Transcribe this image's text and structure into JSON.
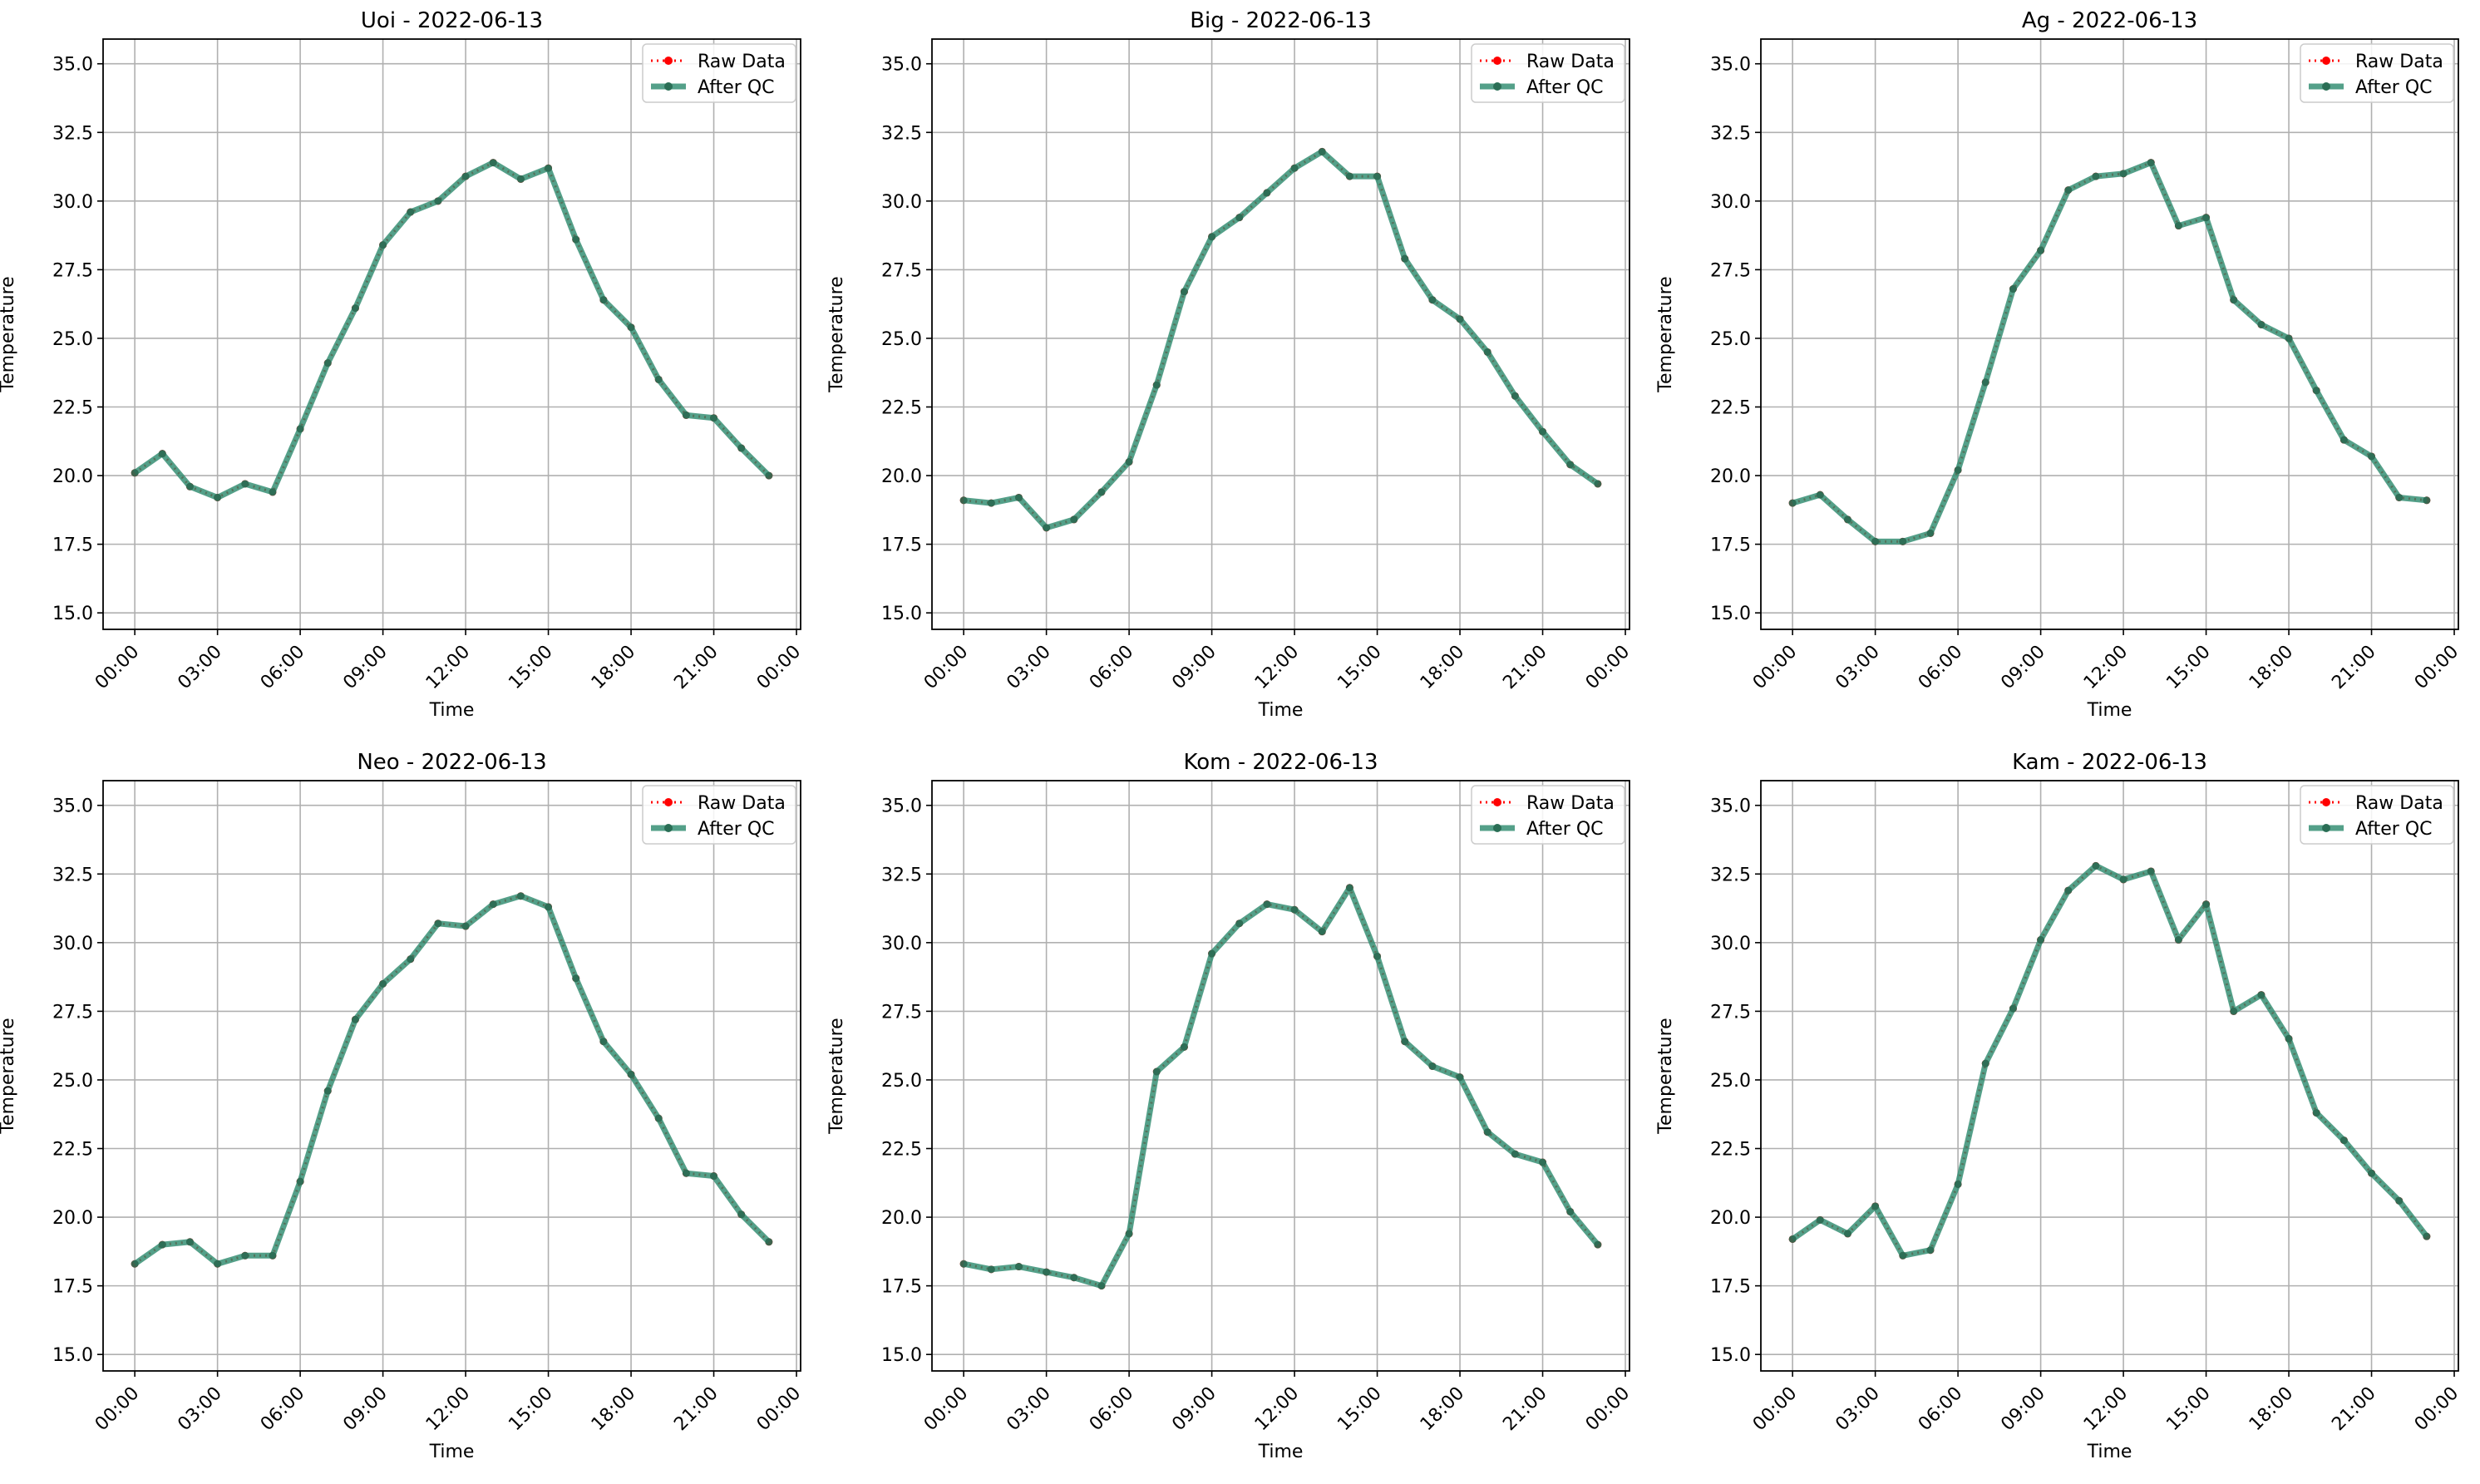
{
  "colors": {
    "raw": "#ff0000",
    "qc": "#2e8b6f",
    "qc_marker": "#2a6e55",
    "grid": "#b0b0b0",
    "axis": "#000000",
    "legend_border": "#cccccc"
  },
  "legend": {
    "raw_label": "Raw Data",
    "qc_label": "After QC",
    "position": "top-right"
  },
  "chart_data": [
    {
      "type": "line",
      "title": "Uoi - 2022-06-13",
      "xlabel": "Time",
      "ylabel": "Temperature",
      "x_hours": [
        0,
        1,
        2,
        3,
        4,
        5,
        6,
        7,
        8,
        9,
        10,
        11,
        12,
        13,
        14,
        15,
        16,
        17,
        18,
        19,
        20,
        21,
        22,
        23
      ],
      "x_tick_labels": [
        "00:00",
        "03:00",
        "06:00",
        "09:00",
        "12:00",
        "15:00",
        "18:00",
        "21:00",
        "00:00"
      ],
      "y_ticks": [
        "15.0",
        "17.5",
        "20.0",
        "22.5",
        "25.0",
        "27.5",
        "30.0",
        "32.5",
        "35.0"
      ],
      "ylim": [
        14.4,
        35.9
      ],
      "grid": true,
      "series": [
        {
          "name": "Raw Data",
          "values": [
            20.1,
            20.8,
            19.6,
            19.2,
            19.7,
            19.4,
            21.7,
            24.1,
            26.1,
            28.4,
            29.6,
            30.0,
            30.9,
            31.4,
            30.8,
            31.2,
            28.6,
            26.4,
            25.4,
            23.5,
            22.2,
            22.1,
            21.0,
            20.0
          ]
        },
        {
          "name": "After QC",
          "values": [
            20.1,
            20.8,
            19.6,
            19.2,
            19.7,
            19.4,
            21.7,
            24.1,
            26.1,
            28.4,
            29.6,
            30.0,
            30.9,
            31.4,
            30.8,
            31.2,
            28.6,
            26.4,
            25.4,
            23.5,
            22.2,
            22.1,
            21.0,
            20.0
          ]
        }
      ]
    },
    {
      "type": "line",
      "title": "Big - 2022-06-13",
      "xlabel": "Time",
      "ylabel": "Temperature",
      "x_hours": [
        0,
        1,
        2,
        3,
        4,
        5,
        6,
        7,
        8,
        9,
        10,
        11,
        12,
        13,
        14,
        15,
        16,
        17,
        18,
        19,
        20,
        21,
        22,
        23
      ],
      "x_tick_labels": [
        "00:00",
        "03:00",
        "06:00",
        "09:00",
        "12:00",
        "15:00",
        "18:00",
        "21:00",
        "00:00"
      ],
      "y_ticks": [
        "15.0",
        "17.5",
        "20.0",
        "22.5",
        "25.0",
        "27.5",
        "30.0",
        "32.5",
        "35.0"
      ],
      "ylim": [
        14.4,
        35.9
      ],
      "grid": true,
      "series": [
        {
          "name": "Raw Data",
          "values": [
            19.1,
            19.0,
            19.2,
            18.1,
            18.4,
            19.4,
            20.5,
            23.3,
            26.7,
            28.7,
            29.4,
            30.3,
            31.2,
            31.8,
            30.9,
            30.9,
            27.9,
            26.4,
            25.7,
            24.5,
            22.9,
            21.6,
            20.4,
            19.7
          ]
        },
        {
          "name": "After QC",
          "values": [
            19.1,
            19.0,
            19.2,
            18.1,
            18.4,
            19.4,
            20.5,
            23.3,
            26.7,
            28.7,
            29.4,
            30.3,
            31.2,
            31.8,
            30.9,
            30.9,
            27.9,
            26.4,
            25.7,
            24.5,
            22.9,
            21.6,
            20.4,
            19.7
          ]
        }
      ]
    },
    {
      "type": "line",
      "title": "Ag - 2022-06-13",
      "xlabel": "Time",
      "ylabel": "Temperature",
      "x_hours": [
        0,
        1,
        2,
        3,
        4,
        5,
        6,
        7,
        8,
        9,
        10,
        11,
        12,
        13,
        14,
        15,
        16,
        17,
        18,
        19,
        20,
        21,
        22,
        23
      ],
      "x_tick_labels": [
        "00:00",
        "03:00",
        "06:00",
        "09:00",
        "12:00",
        "15:00",
        "18:00",
        "21:00",
        "00:00"
      ],
      "y_ticks": [
        "15.0",
        "17.5",
        "20.0",
        "22.5",
        "25.0",
        "27.5",
        "30.0",
        "32.5",
        "35.0"
      ],
      "ylim": [
        14.4,
        35.9
      ],
      "grid": true,
      "series": [
        {
          "name": "Raw Data",
          "values": [
            19.0,
            19.3,
            18.4,
            17.6,
            17.6,
            17.9,
            20.2,
            23.4,
            26.8,
            28.2,
            30.4,
            30.9,
            31.0,
            31.4,
            29.1,
            29.4,
            26.4,
            25.5,
            25.0,
            23.1,
            21.3,
            20.7,
            19.2,
            19.1
          ]
        },
        {
          "name": "After QC",
          "values": [
            19.0,
            19.3,
            18.4,
            17.6,
            17.6,
            17.9,
            20.2,
            23.4,
            26.8,
            28.2,
            30.4,
            30.9,
            31.0,
            31.4,
            29.1,
            29.4,
            26.4,
            25.5,
            25.0,
            23.1,
            21.3,
            20.7,
            19.2,
            19.1
          ]
        }
      ]
    },
    {
      "type": "line",
      "title": "Neo - 2022-06-13",
      "xlabel": "Time",
      "ylabel": "Temperature",
      "x_hours": [
        0,
        1,
        2,
        3,
        4,
        5,
        6,
        7,
        8,
        9,
        10,
        11,
        12,
        13,
        14,
        15,
        16,
        17,
        18,
        19,
        20,
        21,
        22,
        23
      ],
      "x_tick_labels": [
        "00:00",
        "03:00",
        "06:00",
        "09:00",
        "12:00",
        "15:00",
        "18:00",
        "21:00",
        "00:00"
      ],
      "y_ticks": [
        "15.0",
        "17.5",
        "20.0",
        "22.5",
        "25.0",
        "27.5",
        "30.0",
        "32.5",
        "35.0"
      ],
      "ylim": [
        14.4,
        35.9
      ],
      "grid": true,
      "series": [
        {
          "name": "Raw Data",
          "values": [
            18.3,
            19.0,
            19.1,
            18.3,
            18.6,
            18.6,
            21.3,
            24.6,
            27.2,
            28.5,
            29.4,
            30.7,
            30.6,
            31.4,
            31.7,
            31.3,
            28.7,
            26.4,
            25.2,
            23.6,
            21.6,
            21.5,
            20.1,
            19.1
          ]
        },
        {
          "name": "After QC",
          "values": [
            18.3,
            19.0,
            19.1,
            18.3,
            18.6,
            18.6,
            21.3,
            24.6,
            27.2,
            28.5,
            29.4,
            30.7,
            30.6,
            31.4,
            31.7,
            31.3,
            28.7,
            26.4,
            25.2,
            23.6,
            21.6,
            21.5,
            20.1,
            19.1
          ]
        }
      ]
    },
    {
      "type": "line",
      "title": "Kom - 2022-06-13",
      "xlabel": "Time",
      "ylabel": "Temperature",
      "x_hours": [
        0,
        1,
        2,
        3,
        4,
        5,
        6,
        7,
        8,
        9,
        10,
        11,
        12,
        13,
        14,
        15,
        16,
        17,
        18,
        19,
        20,
        21,
        22,
        23
      ],
      "x_tick_labels": [
        "00:00",
        "03:00",
        "06:00",
        "09:00",
        "12:00",
        "15:00",
        "18:00",
        "21:00",
        "00:00"
      ],
      "y_ticks": [
        "15.0",
        "17.5",
        "20.0",
        "22.5",
        "25.0",
        "27.5",
        "30.0",
        "32.5",
        "35.0"
      ],
      "ylim": [
        14.4,
        35.9
      ],
      "grid": true,
      "series": [
        {
          "name": "Raw Data",
          "values": [
            18.3,
            18.1,
            18.2,
            18.0,
            17.8,
            17.5,
            19.4,
            25.3,
            26.2,
            29.6,
            30.7,
            31.4,
            31.2,
            30.4,
            32.0,
            29.5,
            26.4,
            25.5,
            25.1,
            23.1,
            22.3,
            22.0,
            20.2,
            19.0
          ]
        },
        {
          "name": "After QC",
          "values": [
            18.3,
            18.1,
            18.2,
            18.0,
            17.8,
            17.5,
            19.4,
            25.3,
            26.2,
            29.6,
            30.7,
            31.4,
            31.2,
            30.4,
            32.0,
            29.5,
            26.4,
            25.5,
            25.1,
            23.1,
            22.3,
            22.0,
            20.2,
            19.0
          ]
        }
      ]
    },
    {
      "type": "line",
      "title": "Kam - 2022-06-13",
      "xlabel": "Time",
      "ylabel": "Temperature",
      "x_hours": [
        0,
        1,
        2,
        3,
        4,
        5,
        6,
        7,
        8,
        9,
        10,
        11,
        12,
        13,
        14,
        15,
        16,
        17,
        18,
        19,
        20,
        21,
        22,
        23
      ],
      "x_tick_labels": [
        "00:00",
        "03:00",
        "06:00",
        "09:00",
        "12:00",
        "15:00",
        "18:00",
        "21:00",
        "00:00"
      ],
      "y_ticks": [
        "15.0",
        "17.5",
        "20.0",
        "22.5",
        "25.0",
        "27.5",
        "30.0",
        "32.5",
        "35.0"
      ],
      "ylim": [
        14.4,
        35.9
      ],
      "grid": true,
      "series": [
        {
          "name": "Raw Data",
          "values": [
            19.2,
            19.9,
            19.4,
            20.4,
            18.6,
            18.8,
            21.2,
            25.6,
            27.6,
            30.1,
            31.9,
            32.8,
            32.3,
            32.6,
            30.1,
            31.4,
            27.5,
            28.1,
            26.5,
            23.8,
            22.8,
            21.6,
            20.6,
            19.3
          ]
        },
        {
          "name": "After QC",
          "values": [
            19.2,
            19.9,
            19.4,
            20.4,
            18.6,
            18.8,
            21.2,
            25.6,
            27.6,
            30.1,
            31.9,
            32.8,
            32.3,
            32.6,
            30.1,
            31.4,
            27.5,
            28.1,
            26.5,
            23.8,
            22.8,
            21.6,
            20.6,
            19.3
          ]
        }
      ]
    }
  ]
}
